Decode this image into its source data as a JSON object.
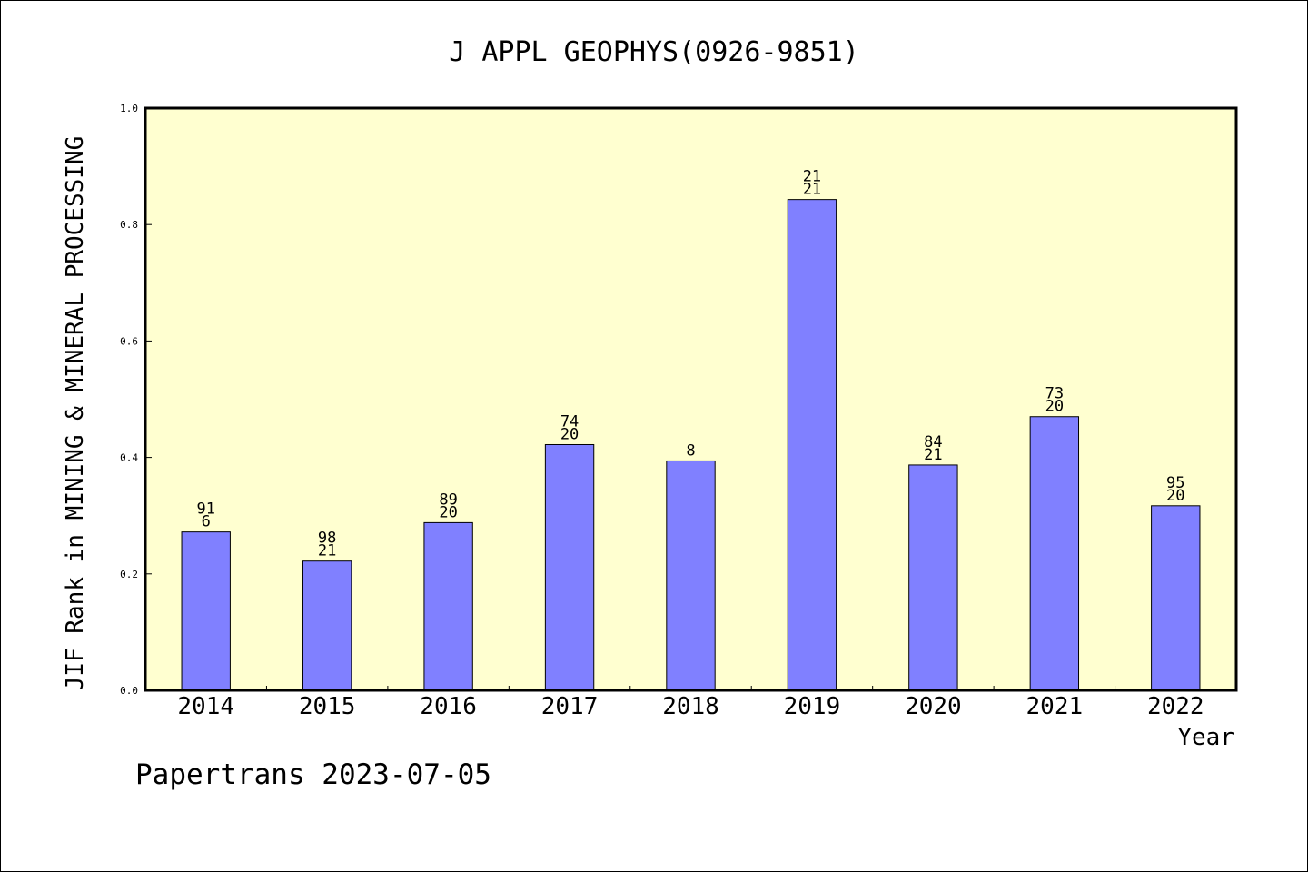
{
  "chart_data": {
    "type": "bar",
    "title": "J APPL GEOPHYS(0926-9851)",
    "xlabel": "Year",
    "ylabel": "JIF Rank in MINING & MINERAL PROCESSING",
    "categories": [
      "2014",
      "2015",
      "2016",
      "2017",
      "2018",
      "2019",
      "2020",
      "2021",
      "2022"
    ],
    "values": [
      0.272,
      0.222,
      0.288,
      0.422,
      0.394,
      0.843,
      0.387,
      0.47,
      0.317
    ],
    "bar_labels": [
      [
        "91",
        "6"
      ],
      [
        "98",
        "21"
      ],
      [
        "89",
        "20"
      ],
      [
        "74",
        "20"
      ],
      [
        "8"
      ],
      [
        "21",
        "21"
      ],
      [
        "84",
        "21"
      ],
      [
        "73",
        "20"
      ],
      [
        "95",
        "20"
      ]
    ],
    "ylim": [
      0,
      1.0
    ],
    "yticks": [
      "0.0",
      "0.2",
      "0.4",
      "0.6",
      "0.8",
      "1.0"
    ],
    "grid": false,
    "legend": "none",
    "colors": {
      "plot_background": "#ffffd0",
      "bar_fill": "#8080ff",
      "bar_stroke": "#000000",
      "axis": "#000000"
    }
  },
  "footer": "Papertrans 2023-07-05"
}
